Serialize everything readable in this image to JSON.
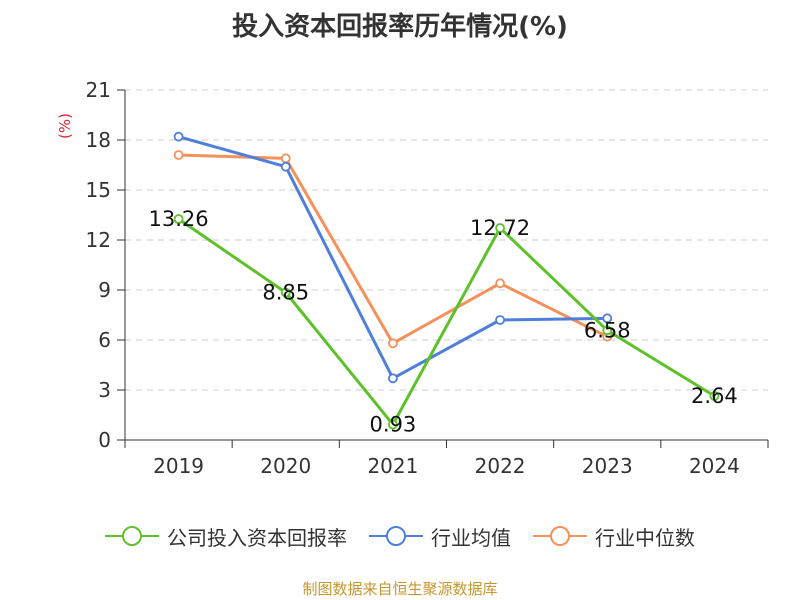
{
  "title": "投入资本回报率历年情况(%)",
  "source": "制图数据来自恒生聚源数据库",
  "chart_data": {
    "type": "line",
    "title": "投入资本回报率历年情况(%)",
    "ylabel": "(%)",
    "xlabel": "",
    "categories": [
      "2019",
      "2020",
      "2021",
      "2022",
      "2023",
      "2024"
    ],
    "ylim": [
      0,
      21
    ],
    "yticks": [
      0,
      3,
      6,
      9,
      12,
      15,
      18,
      21
    ],
    "grid": true,
    "legend_position": "bottom",
    "series": [
      {
        "name": "公司投入资本回报率",
        "color": "#5ec12a",
        "values": [
          13.26,
          8.85,
          0.93,
          12.72,
          6.58,
          2.64
        ],
        "labels": [
          "13.26",
          "8.85",
          "0.93",
          "12.72",
          "6.58",
          "2.64"
        ]
      },
      {
        "name": "行业均值",
        "color": "#4f7fdb",
        "values": [
          18.2,
          16.4,
          3.7,
          7.2,
          7.3,
          null
        ]
      },
      {
        "name": "行业中位数",
        "color": "#f5915a",
        "values": [
          17.1,
          16.9,
          5.8,
          9.4,
          6.2,
          null
        ]
      }
    ]
  }
}
